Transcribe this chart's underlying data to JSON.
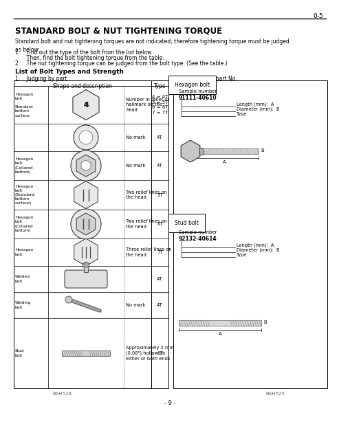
{
  "title": "STANDARD BOLT & NUT TIGHTENING TORQUE",
  "page_num": "0-5",
  "body_text": "Standard bolt and nut tightening torques are not indicated; therefore tightening torque must be judged\nas below:",
  "step1a": "1.    Find out the type of the bolt from the list below.",
  "step1b": "       Then, find the bolt tightening torque from the table.",
  "step2": "2.    The nut tightening torque can be judged from the bolt type. (See the table.)",
  "list_title": "List of Bolt Types and Strength",
  "col1_header": "1.    Judging by part",
  "col2_header": "2.    Judging by part No.",
  "table_col1": "Shape and description",
  "table_col2": "Type",
  "desc1": "Number in relief or\nhallmark on the\nhead",
  "type1": "4 = 4T\n5 = 5T\n6 = 6T\n7 = 7T",
  "desc2": "No mark",
  "type2": "4T",
  "desc3": "No mark",
  "type3": "4T",
  "desc4": "Two relief lines on\nthe head",
  "type4": "5T",
  "desc5": "Two relief lines on\nthe head",
  "type5": "6T",
  "desc6": "Three relief lines on\nthe head",
  "type6": "7T",
  "desc7": "",
  "type7": "4T",
  "desc8": "No mark",
  "type8": "4T",
  "desc9": "Approximately 2 mm\n(0.08\") hollow on\neither or both ends",
  "type9": "6T",
  "row_labels": [
    "Hexagon\nbolt\n\nStandard\nbottom\nsurface",
    "",
    "Hexagon\nbolt\n(Collared\nbottom)",
    "Hexagon\nbolt\n(Standard\nbottom\nsurface)",
    "Hexagon\nbolt\n(Collared\nbottom)",
    "Hexagon\nbolt",
    "Welded\nbolt",
    "Welding\nbolt",
    "Stud\nbolt"
  ],
  "hex_bolt_section": "Hexagon bolt",
  "sample1": "Sample number",
  "sample1_num": "91111-40610",
  "len_label": "Length (mm):  A",
  "dia_label": "Diameter (mm):  B",
  "type_label": "Type",
  "stud_bolt_section": "Stud bolt",
  "sample2": "Sample number",
  "sample2_num": "92132-40614",
  "len_label2": "Length (mm):  A",
  "dia_label2": "Diameter (mm):  B",
  "type_label2": "Type",
  "footer_left": "BAH528",
  "footer_right": "BAH525",
  "page_bottom": "- 9 -",
  "bg_color": "#ffffff",
  "text_color": "#000000"
}
